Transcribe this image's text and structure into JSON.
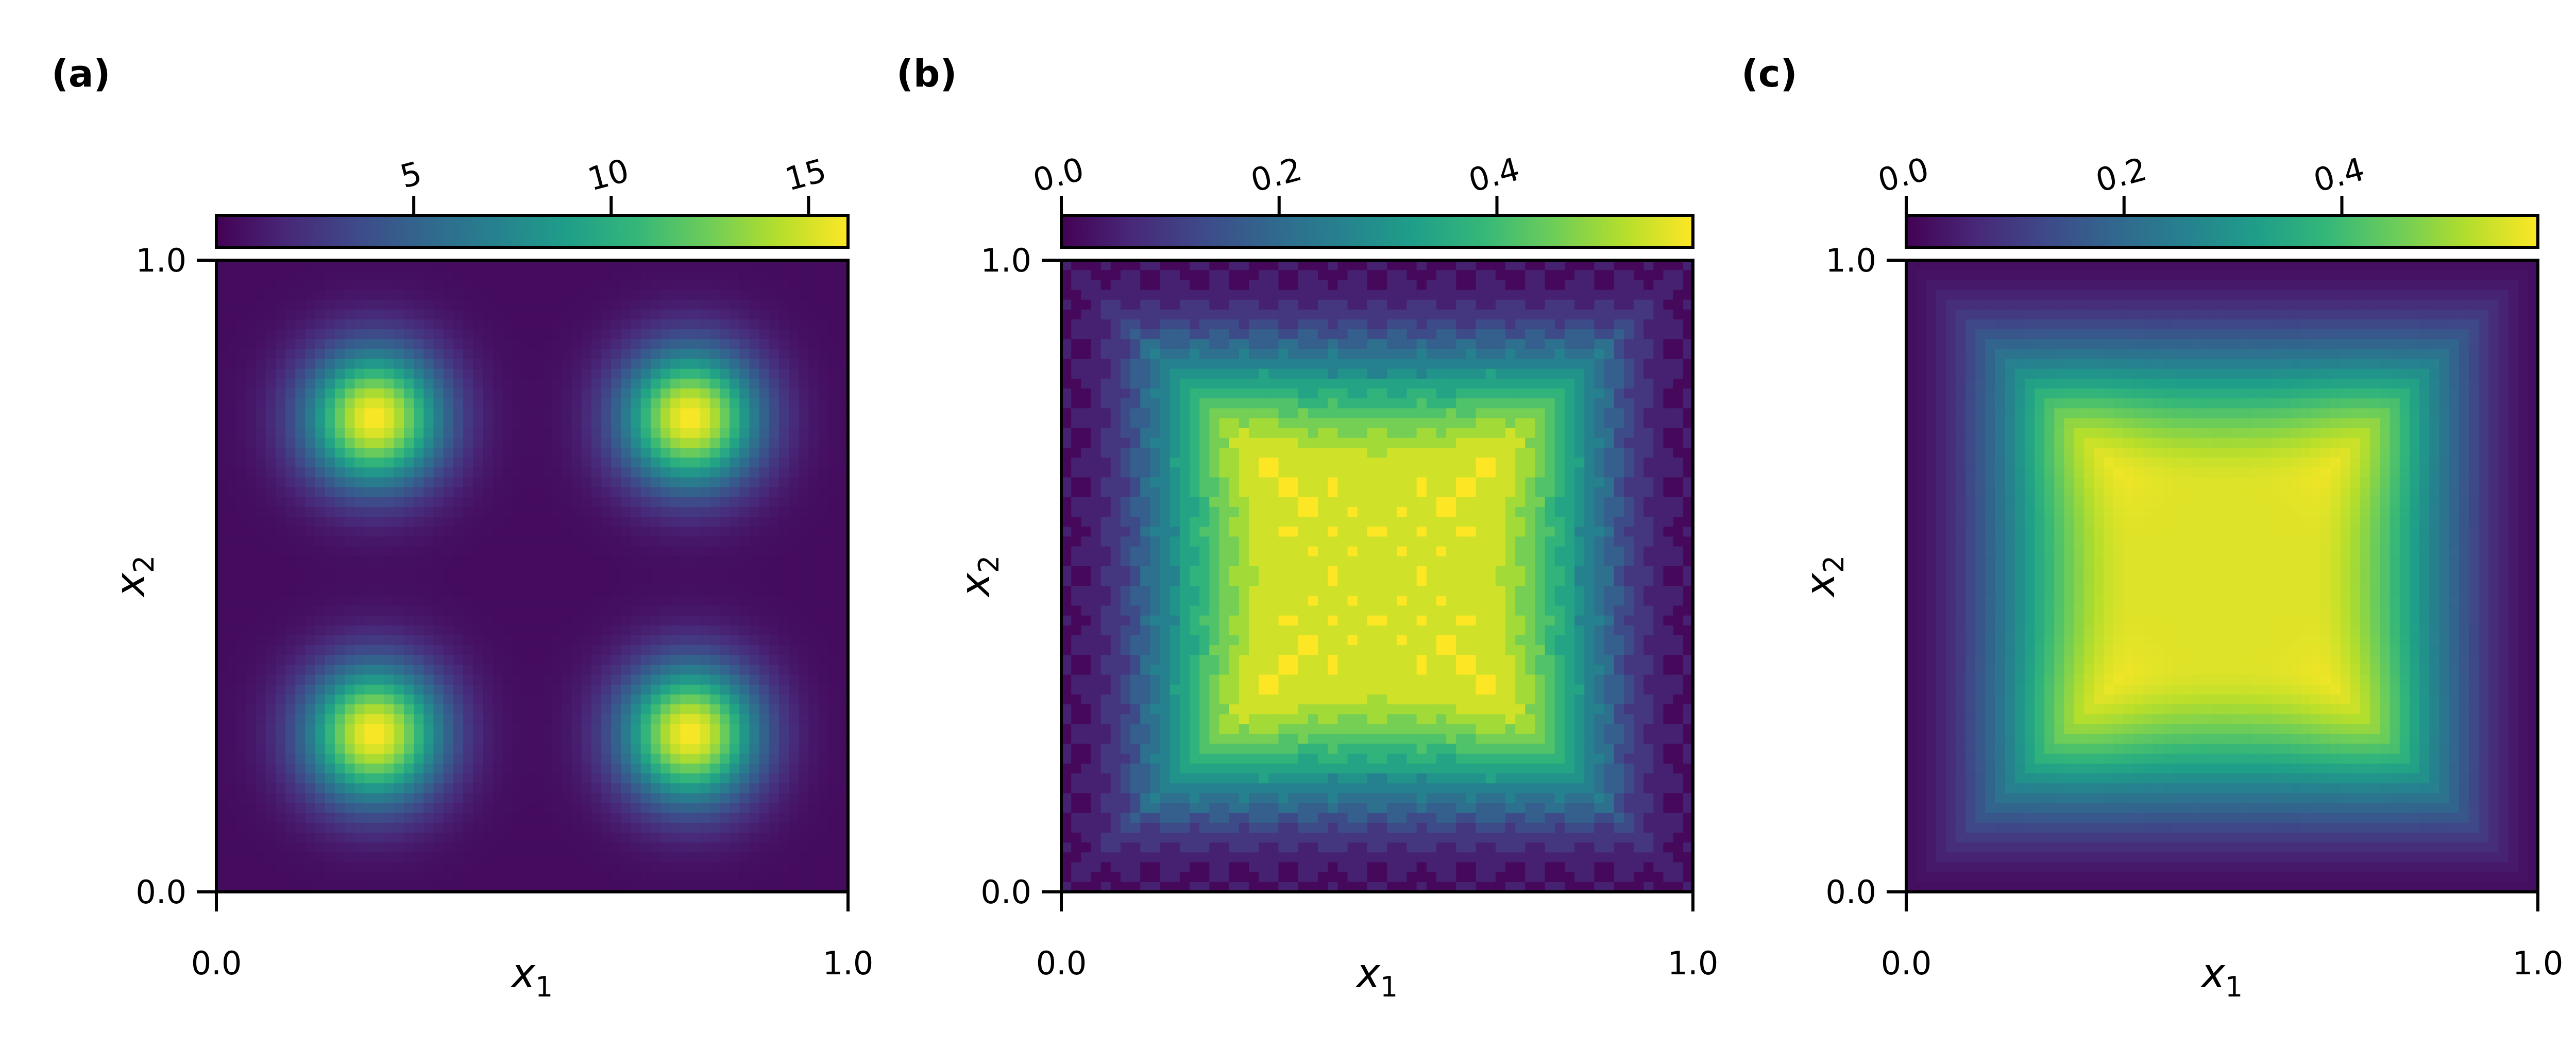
{
  "figure": {
    "background": "#ffffff",
    "colormap": "viridis"
  },
  "chart_data": [
    {
      "type": "heatmap",
      "panel_label": "(a)",
      "field": "four_gaussian_peaks",
      "peak_centers": [
        [
          0.25,
          0.75
        ],
        [
          0.75,
          0.75
        ],
        [
          0.25,
          0.25
        ],
        [
          0.75,
          0.25
        ]
      ],
      "peak_max": 16,
      "xlabel": "x",
      "xlabel_sub": "1",
      "ylabel": "x",
      "ylabel_sub": "2",
      "xlim": [
        0.0,
        1.0
      ],
      "ylim": [
        0.0,
        1.0
      ],
      "xticks": [
        0.0,
        1.0
      ],
      "xtick_labels": [
        "0.0",
        "1.0"
      ],
      "yticks": [
        0.0,
        1.0
      ],
      "ytick_labels": [
        "0.0",
        "1.0"
      ],
      "colorbar": {
        "location": "top",
        "range": [
          0.0,
          16.0
        ],
        "ticks": [
          5,
          10,
          15
        ],
        "tick_labels": [
          "5",
          "10",
          "15"
        ]
      }
    },
    {
      "type": "heatmap",
      "panel_label": "(b)",
      "field": "cross_plateau_coarse",
      "plateau_max": 0.58,
      "xlabel": "x",
      "xlabel_sub": "1",
      "ylabel": "x",
      "ylabel_sub": "2",
      "xlim": [
        0.0,
        1.0
      ],
      "ylim": [
        0.0,
        1.0
      ],
      "xticks": [
        0.0,
        1.0
      ],
      "xtick_labels": [
        "0.0",
        "1.0"
      ],
      "yticks": [
        0.0,
        1.0
      ],
      "ytick_labels": [
        "0.0",
        "1.0"
      ],
      "colorbar": {
        "location": "top",
        "range": [
          0.0,
          0.58
        ],
        "ticks": [
          0.0,
          0.2,
          0.4
        ],
        "tick_labels": [
          "0.0",
          "0.2",
          "0.4"
        ]
      }
    },
    {
      "type": "heatmap",
      "panel_label": "(c)",
      "field": "cross_plateau_smooth",
      "plateau_max": 0.58,
      "xlabel": "x",
      "xlabel_sub": "1",
      "ylabel": "x",
      "ylabel_sub": "2",
      "xlim": [
        0.0,
        1.0
      ],
      "ylim": [
        0.0,
        1.0
      ],
      "xticks": [
        0.0,
        1.0
      ],
      "xtick_labels": [
        "0.0",
        "1.0"
      ],
      "yticks": [
        0.0,
        1.0
      ],
      "ytick_labels": [
        "0.0",
        "1.0"
      ],
      "colorbar": {
        "location": "top",
        "range": [
          0.0,
          0.58
        ],
        "ticks": [
          0.0,
          0.2,
          0.4
        ],
        "tick_labels": [
          "0.0",
          "0.2",
          "0.4"
        ]
      }
    }
  ]
}
